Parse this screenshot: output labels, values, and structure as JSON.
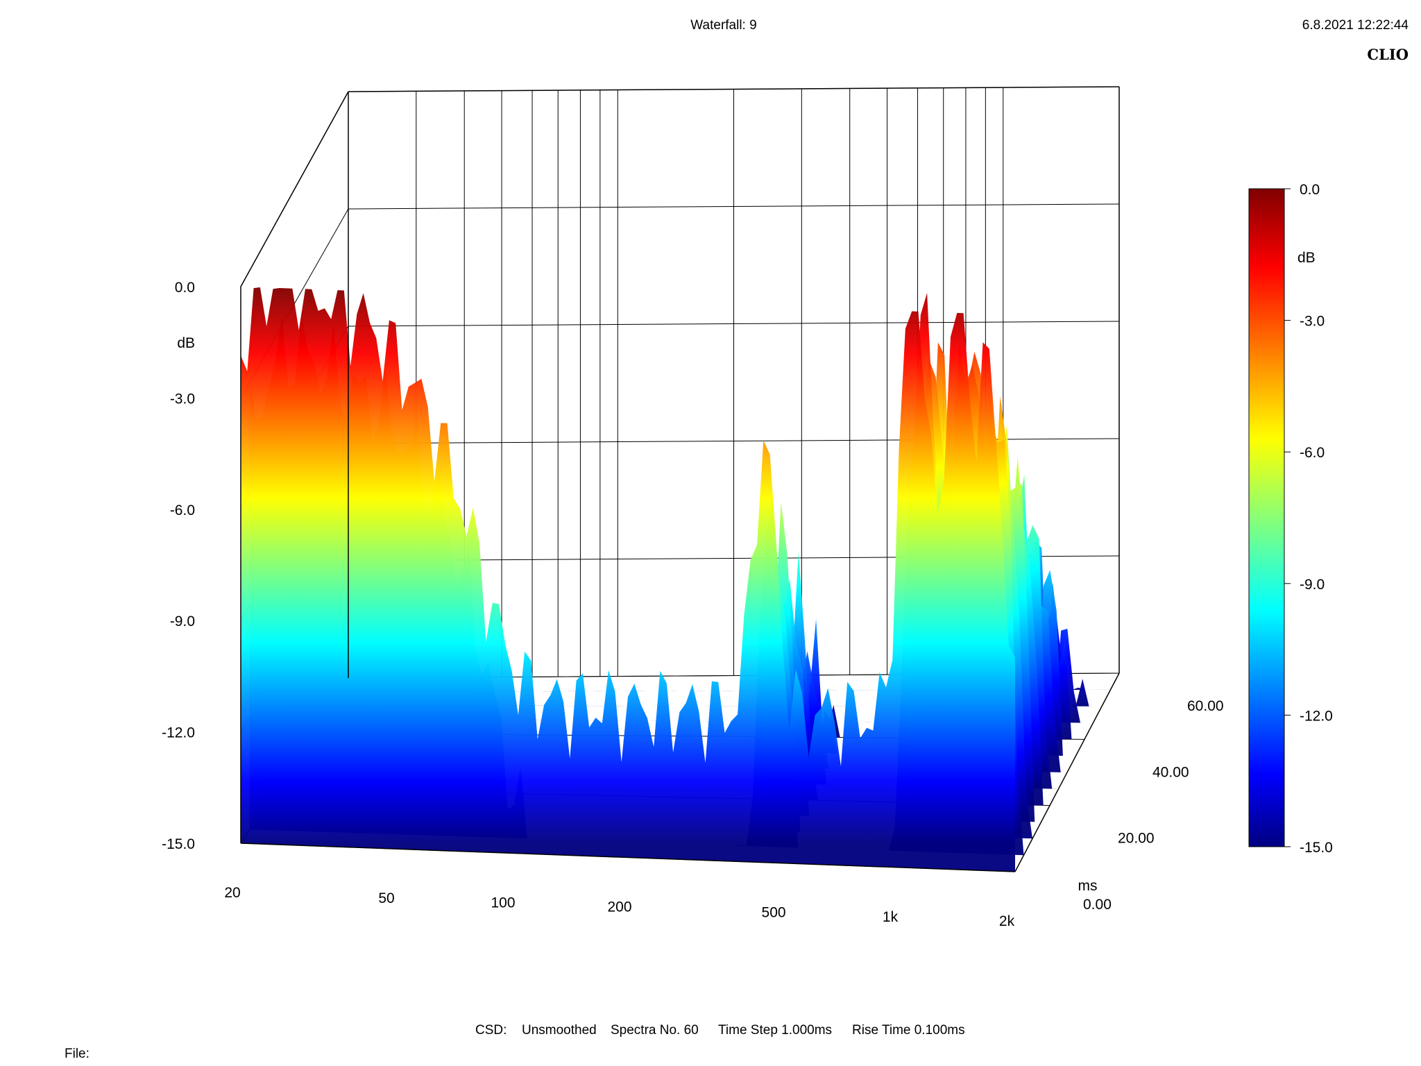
{
  "header": {
    "title": "Waterfall: 9",
    "timestamp": "6.8.2021 12:22:44",
    "brand": "CLIO"
  },
  "footer": {
    "csd_label": "CSD:",
    "smoothing": "Unsmoothed",
    "spectra": "Spectra No. 60",
    "time_step": "Time Step 1.000ms",
    "rise_time": "Rise Time 0.100ms",
    "file_label": "File:"
  },
  "chart_data": {
    "type": "waterfall",
    "title": "Waterfall: 9",
    "x_axis": {
      "scale": "log",
      "range": [
        20,
        2000
      ],
      "tick_labels": [
        "20",
        "50",
        "100",
        "200",
        "500",
        "1k",
        "2k"
      ],
      "tick_values": [
        20,
        50,
        100,
        200,
        500,
        1000,
        2000
      ]
    },
    "y_axis": {
      "unit": "dB",
      "range": [
        -15,
        0
      ],
      "tick_labels": [
        "0.0",
        "-3.0",
        "-6.0",
        "-9.0",
        "-12.0",
        "-15.0"
      ],
      "tick_values": [
        0,
        -3,
        -6,
        -9,
        -12,
        -15
      ]
    },
    "z_axis": {
      "unit": "ms",
      "range": [
        0,
        60
      ],
      "tick_labels": [
        "0.00",
        "20.00",
        "40.00",
        "60.00"
      ],
      "tick_values": [
        0,
        20,
        40,
        60
      ]
    },
    "colorbar": {
      "unit": "dB",
      "range": [
        -15,
        0
      ],
      "tick_labels": [
        "0.0",
        "-3.0",
        "-6.0",
        "-9.0",
        "-12.0",
        "-15.0"
      ],
      "tick_values": [
        0,
        -3,
        -6,
        -9,
        -12,
        -15
      ]
    },
    "grid": true,
    "legend": "colorbar-right",
    "spectra_count": 60,
    "time_step_ms": 1.0,
    "rise_time_ms": 0.1,
    "peaks_at_0ms": [
      {
        "freq": 25,
        "db": -0.3
      },
      {
        "freq": 40,
        "db": -2.2
      },
      {
        "freq": 60,
        "db": -5.5
      },
      {
        "freq": 450,
        "db": -5.0
      },
      {
        "freq": 1100,
        "db": 0.5
      },
      {
        "freq": 1420,
        "db": 0.0
      },
      {
        "freq": 1700,
        "db": -2.0
      }
    ],
    "colormap": [
      "#000080",
      "#0000ff",
      "#00ffff",
      "#ffff00",
      "#ff0000",
      "#800000"
    ]
  }
}
